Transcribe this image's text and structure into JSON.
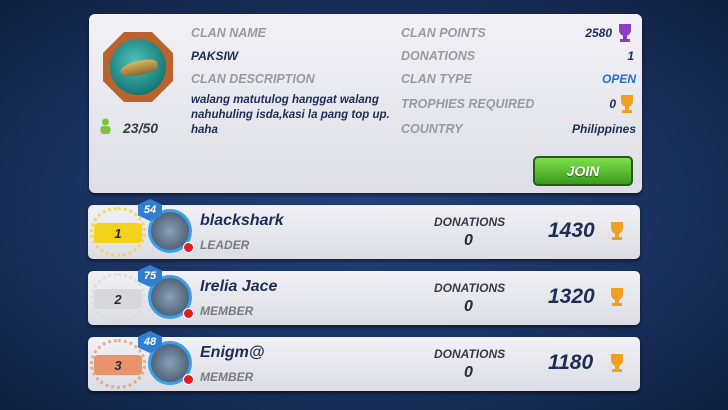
{
  "clan": {
    "name_label": "CLAN NAME",
    "name": "PAKSIW",
    "description_label": "CLAN DESCRIPTION",
    "description": "walang matutulog hanggat walang nahuhuling isda,kasi la pang top up. haha",
    "members": "23/50",
    "points_label": "CLAN POINTS",
    "points": "2580",
    "donations_label": "DONATIONS",
    "donations": "1",
    "type_label": "CLAN TYPE",
    "type": "OPEN",
    "trophies_label": "TROPHIES REQUIRED",
    "trophies": "0",
    "country_label": "COUNTRY",
    "country": "Philippines",
    "join_label": "JOIN",
    "colors": {
      "open": "#1f6fc8",
      "join": "#5cc234",
      "points_trophy": "#8b3fc0",
      "gold_trophy": "#f0a020"
    }
  },
  "members": [
    {
      "rank": "1",
      "level": "54",
      "name": "blackshark",
      "role": "LEADER",
      "donations_label": "DONATIONS",
      "donations": "0",
      "points": "1430",
      "rank_color": "#f4d21a"
    },
    {
      "rank": "2",
      "level": "75",
      "name": "Irelia Jace",
      "role": "MEMBER",
      "donations_label": "DONATIONS",
      "donations": "0",
      "points": "1320",
      "rank_color": "#d8d8dc"
    },
    {
      "rank": "3",
      "level": "48",
      "name": "Enigm@",
      "role": "MEMBER",
      "donations_label": "DONATIONS",
      "donations": "0",
      "points": "1180",
      "rank_color": "#e8946a"
    }
  ]
}
